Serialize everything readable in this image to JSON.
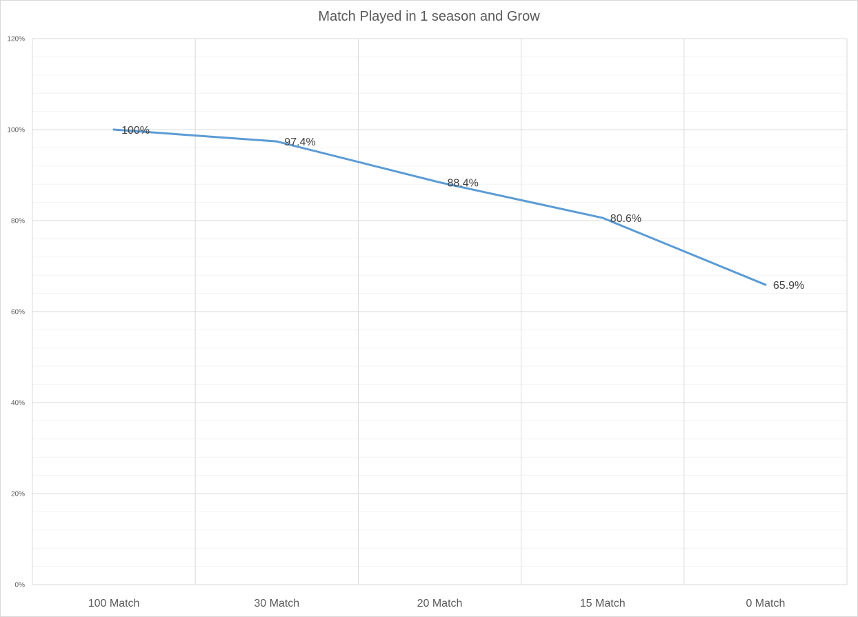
{
  "chart_data": {
    "type": "line",
    "title": "Match Played in 1 season and Grow",
    "xlabel": "",
    "ylabel": "",
    "categories": [
      "100 Match",
      "30 Match",
      "20 Match",
      "15 Match",
      "0 Match"
    ],
    "series": [
      {
        "values": [
          100,
          97.4,
          88.4,
          80.6,
          65.9
        ],
        "data_labels": [
          "100%",
          "97.4%",
          "88.4%",
          "80.6%",
          "65.9%"
        ],
        "color": "#5b9bd5"
      }
    ],
    "ylim": [
      0,
      120
    ],
    "y_major_step": 20,
    "y_minor_step": 4,
    "y_tick_labels": [
      "0%",
      "20%",
      "40%",
      "60%",
      "80%",
      "100%",
      "120%"
    ],
    "grid": true,
    "legend": "none"
  }
}
